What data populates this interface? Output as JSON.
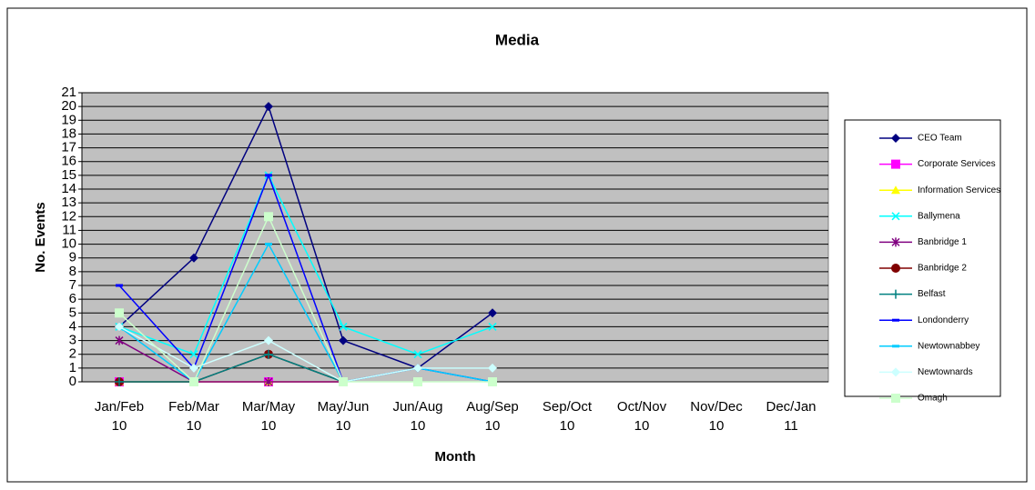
{
  "chart_data": {
    "type": "line",
    "title": "Media",
    "x_label": "Month",
    "y_label": "No. Events",
    "categories": [
      "Jan/Feb 10",
      "Feb/Mar 10",
      "Mar/May 10",
      "May/Jun 10",
      "Jun/Aug 10",
      "Aug/Sep 10",
      "Sep/Oct 10",
      "Oct/Nov 10",
      "Nov/Dec 10",
      "Dec/Jan 11"
    ],
    "ylim": [
      0,
      21
    ],
    "yticks": [
      0,
      1,
      2,
      3,
      4,
      5,
      6,
      7,
      8,
      9,
      10,
      11,
      12,
      13,
      14,
      15,
      16,
      17,
      18,
      19,
      20,
      21
    ],
    "grid": true,
    "legend": "right",
    "series": [
      {
        "name": "CEO Team",
        "color": "#000080",
        "marker": "diamond",
        "values": [
          4,
          9,
          20,
          3,
          1,
          5,
          null,
          null,
          null,
          null
        ]
      },
      {
        "name": "Corporate Services",
        "color": "#ff00ff",
        "marker": "square",
        "values": [
          0,
          0,
          0,
          0,
          null,
          null,
          null,
          null,
          null,
          null
        ]
      },
      {
        "name": "Information Services",
        "color": "#ffff00",
        "marker": "triangle",
        "values": [
          0,
          0,
          0,
          0,
          null,
          null,
          null,
          null,
          null,
          null
        ]
      },
      {
        "name": "Ballymena",
        "color": "#00ffff",
        "marker": "x",
        "values": [
          4,
          2,
          15,
          4,
          2,
          4,
          null,
          null,
          null,
          null
        ]
      },
      {
        "name": "Banbridge 1",
        "color": "#800080",
        "marker": "star",
        "values": [
          3,
          0,
          0,
          0,
          null,
          null,
          null,
          null,
          null,
          null
        ]
      },
      {
        "name": "Banbridge 2",
        "color": "#800000",
        "marker": "circle",
        "values": [
          0,
          0,
          2,
          0,
          null,
          null,
          null,
          null,
          null,
          null
        ]
      },
      {
        "name": "Belfast",
        "color": "#008080",
        "marker": "plus",
        "values": [
          0,
          0,
          2,
          0,
          null,
          null,
          null,
          null,
          null,
          null
        ]
      },
      {
        "name": "Londonderry",
        "color": "#0000ff",
        "marker": "dash",
        "values": [
          7,
          1,
          15,
          0,
          1,
          0,
          null,
          null,
          null,
          null
        ]
      },
      {
        "name": "Newtownabbey",
        "color": "#00ccff",
        "marker": "dash",
        "values": [
          4,
          0,
          10,
          0,
          1,
          0,
          null,
          null,
          null,
          null
        ]
      },
      {
        "name": "Newtownards",
        "color": "#ccffff",
        "marker": "diamond",
        "values": [
          4,
          1,
          3,
          0,
          1,
          1,
          null,
          null,
          null,
          null
        ]
      },
      {
        "name": "Omagh",
        "color": "#ccffcc",
        "marker": "square",
        "values": [
          5,
          0,
          12,
          0,
          0,
          0,
          null,
          null,
          null,
          null
        ]
      }
    ]
  }
}
